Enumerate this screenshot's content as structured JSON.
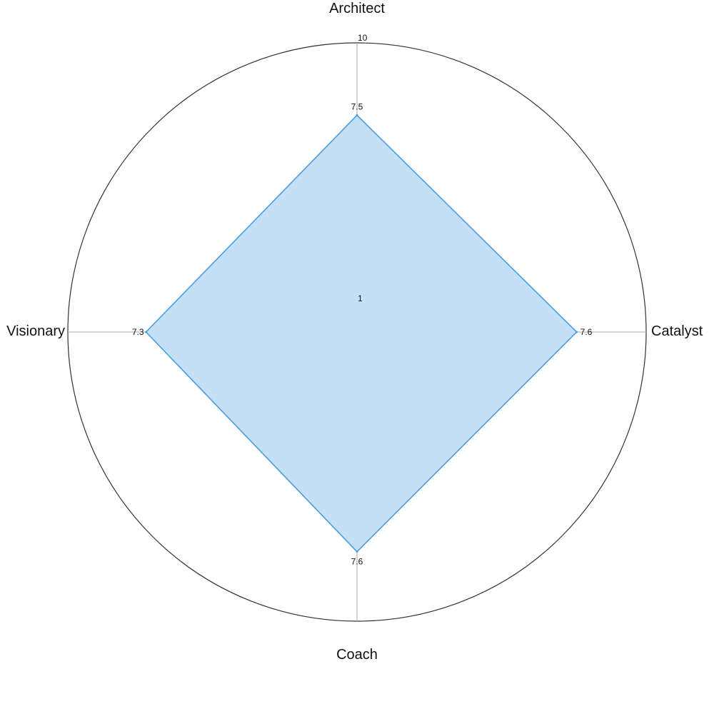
{
  "chart_data": {
    "type": "radar",
    "title": "",
    "categories": [
      "Architect",
      "Catalyst",
      "Coach",
      "Visionary"
    ],
    "series": [
      {
        "values": [
          7.5,
          7.6,
          7.6,
          7.3
        ]
      }
    ],
    "value_labels": [
      "7.5",
      "7.6",
      "7.6",
      "7.3"
    ],
    "range": [
      1,
      10
    ],
    "scale_labels": {
      "min": "1",
      "max": "10"
    },
    "grid": true,
    "legend": "none",
    "colors": {
      "fill": "#c5dff7",
      "stroke": "#4a9de0",
      "outer_ring": "#333333",
      "spokes": "#aaaaaa",
      "inner_ring": "#aaaaaa"
    }
  }
}
